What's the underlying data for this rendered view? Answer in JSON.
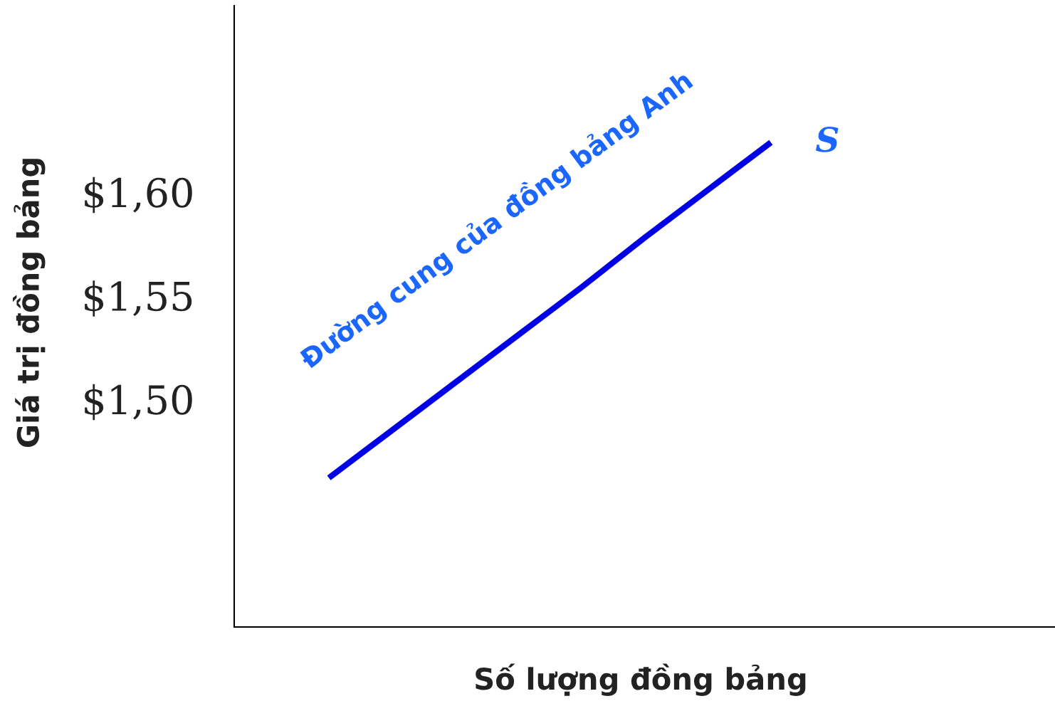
{
  "chart_data": {
    "type": "line",
    "xlabel": "Số lượng đồng bảng",
    "ylabel": "Giá trị đồng bảng",
    "categories": [
      null,
      null,
      null,
      null,
      null,
      null,
      null,
      null,
      null,
      null,
      null,
      null,
      null
    ],
    "series": [
      {
        "name": "S",
        "color": "#0000e6",
        "values": [
          null,
          1.462,
          1.485,
          1.508,
          1.531,
          1.554,
          1.578,
          1.601,
          1.624,
          null,
          null,
          null,
          null
        ]
      }
    ],
    "ylim": [
      1.39,
      1.69
    ],
    "yticks": [
      {
        "value": 1.5,
        "label": "$1,50"
      },
      {
        "value": 1.55,
        "label": "$1,55"
      },
      {
        "value": 1.6,
        "label": "$1,60"
      }
    ],
    "tick_labels": "y",
    "grid": false,
    "legend": false,
    "marker": "none",
    "line_style": "solid",
    "annotations": [
      "Đường cung của đồng bảng Anh"
    ]
  }
}
